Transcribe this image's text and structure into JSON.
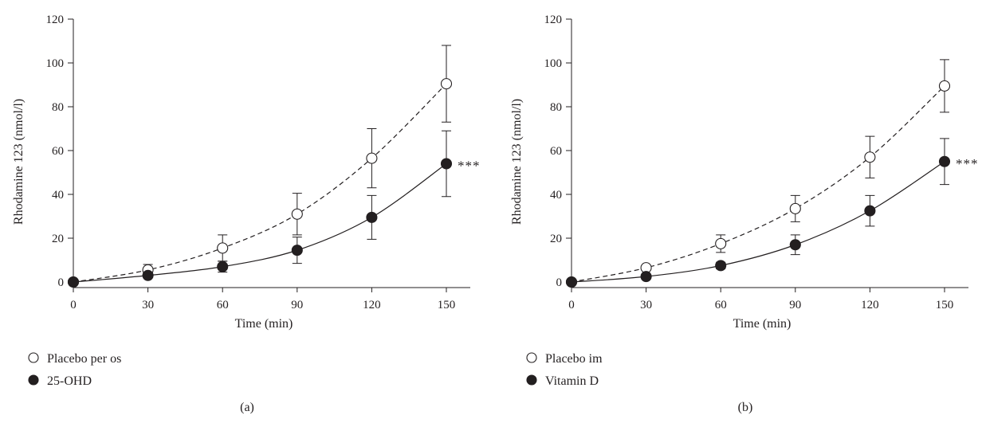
{
  "chart_data": [
    {
      "type": "line",
      "panel_label": "(a)",
      "xlabel": "Time (min)",
      "ylabel": "Rhodamine 123 (nmol/l)",
      "x_ticks": [
        0,
        30,
        60,
        90,
        120,
        150
      ],
      "y_ticks": [
        0,
        20,
        40,
        60,
        80,
        100,
        120
      ],
      "xlim": [
        0,
        160
      ],
      "ylim": [
        0,
        120
      ],
      "legend_position": "bottom-left",
      "series": [
        {
          "name": "Placebo per os",
          "marker": "open-circle",
          "line_style": "dashed",
          "x": [
            0,
            30,
            60,
            90,
            120,
            150
          ],
          "y": [
            0,
            5.5,
            15.5,
            31,
            56.5,
            90.5
          ],
          "error": [
            0,
            2.5,
            6,
            9.5,
            13.5,
            17.5
          ]
        },
        {
          "name": "25-OHD",
          "marker": "filled-circle",
          "line_style": "solid",
          "x": [
            0,
            30,
            60,
            90,
            120,
            150
          ],
          "y": [
            0,
            3,
            7,
            14.5,
            29.5,
            54
          ],
          "error": [
            0,
            1,
            2.5,
            6,
            10,
            15
          ]
        }
      ],
      "annotation": "***"
    },
    {
      "type": "line",
      "panel_label": "(b)",
      "xlabel": "Time (min)",
      "ylabel": "Rhodamine 123 (nmol/l)",
      "x_ticks": [
        0,
        30,
        60,
        90,
        120,
        150
      ],
      "y_ticks": [
        0,
        20,
        40,
        60,
        80,
        100,
        120
      ],
      "xlim": [
        0,
        160
      ],
      "ylim": [
        0,
        120
      ],
      "legend_position": "bottom-left",
      "series": [
        {
          "name": "Placebo im",
          "marker": "open-circle",
          "line_style": "dashed",
          "x": [
            0,
            30,
            60,
            90,
            120,
            150
          ],
          "y": [
            0,
            6.5,
            17.5,
            33.5,
            57,
            89.5
          ],
          "error": [
            0,
            1,
            4,
            6,
            9.5,
            12
          ]
        },
        {
          "name": "Vitamin D",
          "marker": "filled-circle",
          "line_style": "solid",
          "x": [
            0,
            30,
            60,
            90,
            120,
            150
          ],
          "y": [
            0,
            2.5,
            7.5,
            17,
            32.5,
            55
          ],
          "error": [
            0,
            0.5,
            1.5,
            4.5,
            7,
            10.5
          ]
        }
      ],
      "annotation": "***"
    }
  ]
}
